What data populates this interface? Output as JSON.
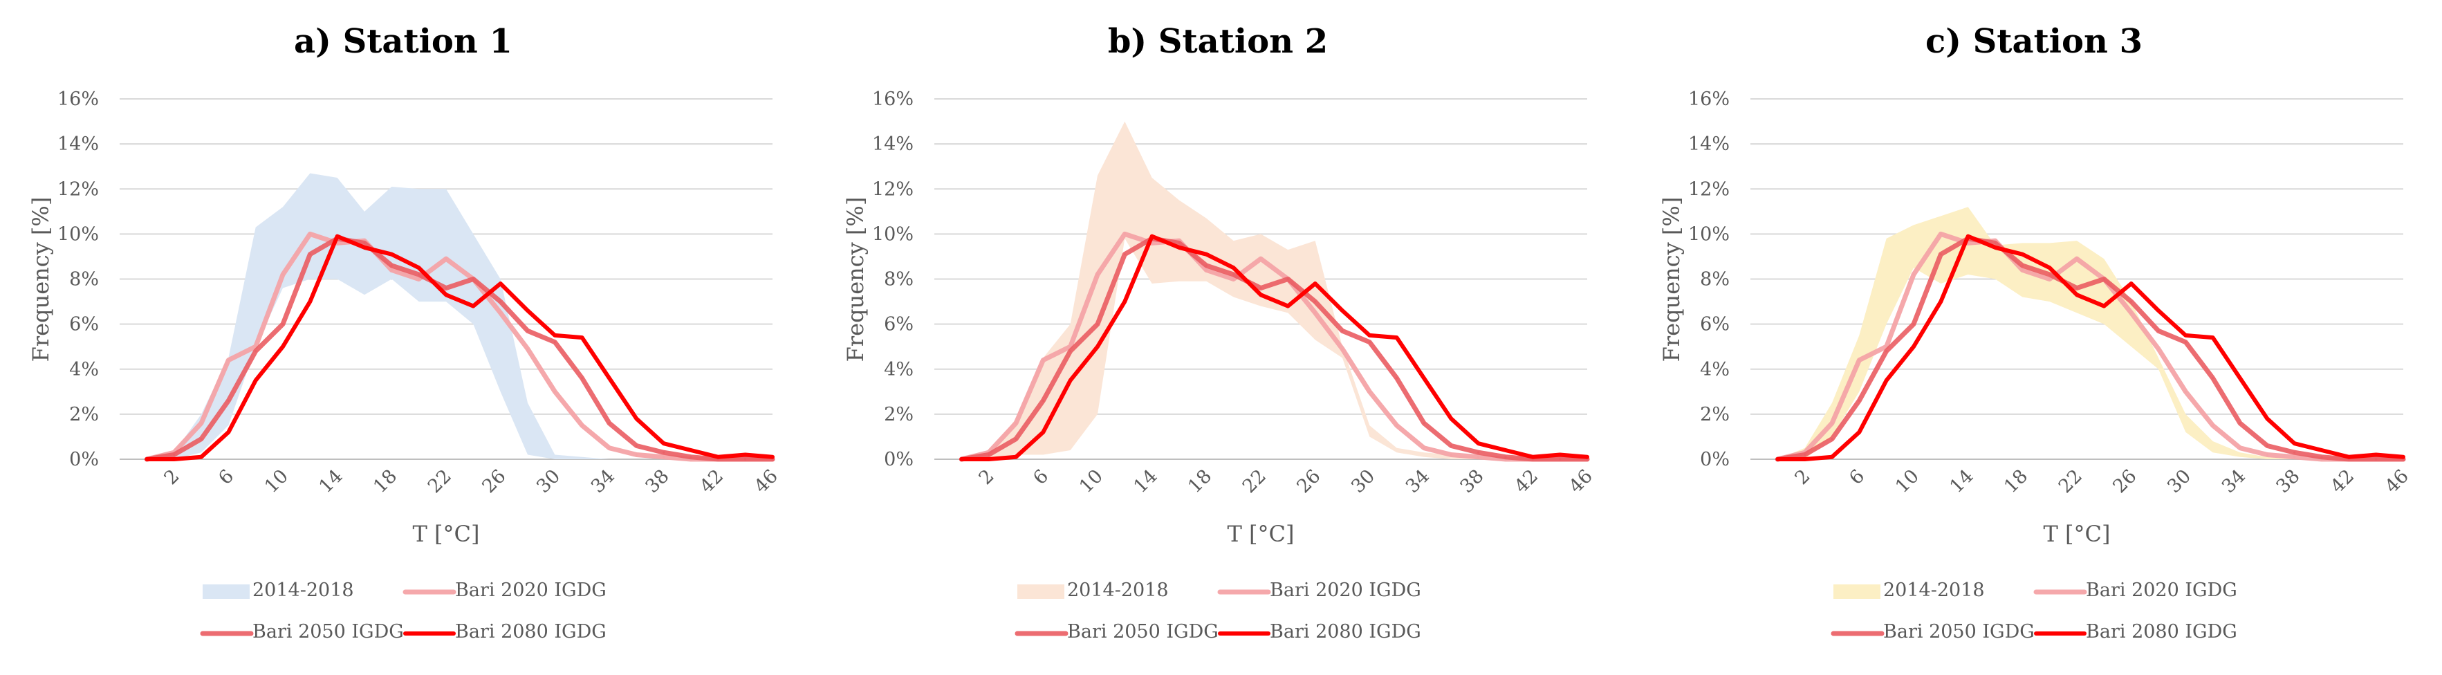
{
  "chart_data": [
    {
      "type": "line",
      "title": "a) Station 1",
      "xlabel": "T [°C]",
      "ylabel": "Frequency [%]",
      "x": [
        0,
        2,
        4,
        6,
        8,
        10,
        12,
        14,
        16,
        18,
        20,
        22,
        24,
        26,
        28,
        30,
        32,
        34,
        36,
        38,
        40,
        42,
        44,
        46
      ],
      "x_tick_labels": [
        "2",
        "6",
        "10",
        "14",
        "18",
        "22",
        "26",
        "30",
        "34",
        "38",
        "42",
        "46"
      ],
      "y_ticks": [
        "0%",
        "2%",
        "4%",
        "6%",
        "8%",
        "10%",
        "12%",
        "14%",
        "16%"
      ],
      "ylim": [
        0,
        16
      ],
      "grid": true,
      "legend_position": "bottom",
      "band": {
        "name": "2014-2018",
        "color": "#dae6f4",
        "upper": [
          0,
          0.3,
          2.0,
          4.5,
          10.3,
          11.2,
          12.7,
          12.5,
          11.0,
          12.1,
          12.0,
          12.0,
          10.0,
          8.0,
          2.5,
          0.2,
          0.1,
          0,
          0,
          0,
          0,
          0,
          0,
          0
        ],
        "lower": [
          0,
          0,
          0.3,
          1.5,
          5.0,
          7.6,
          8.0,
          8.0,
          7.3,
          8.0,
          7.0,
          7.0,
          6.0,
          3.0,
          0.2,
          0,
          0,
          0,
          0,
          0,
          0,
          0,
          0,
          0
        ]
      },
      "series": [
        {
          "name": "Bari 2020 IGDG",
          "color": "#f4a3a7",
          "values": [
            0,
            0.3,
            1.6,
            4.4,
            5.0,
            8.2,
            10.0,
            9.6,
            9.7,
            8.4,
            8.0,
            8.9,
            8.0,
            6.5,
            4.9,
            3.0,
            1.5,
            0.5,
            0.2,
            0.1,
            0,
            0,
            0,
            0
          ]
        },
        {
          "name": "Bari 2050  IGDG",
          "color": "#ea5c62",
          "values": [
            0,
            0.2,
            0.9,
            2.6,
            4.8,
            6.0,
            9.1,
            9.8,
            9.6,
            8.6,
            8.2,
            7.6,
            8.0,
            7.0,
            5.7,
            5.2,
            3.6,
            1.6,
            0.6,
            0.3,
            0.1,
            0,
            0,
            0
          ]
        },
        {
          "name": "Bari 2080 IGDG",
          "color": "#ff0000",
          "values": [
            0,
            0,
            0.1,
            1.2,
            3.5,
            5.0,
            7.0,
            9.9,
            9.4,
            9.1,
            8.5,
            7.3,
            6.8,
            7.8,
            6.6,
            5.5,
            5.4,
            3.6,
            1.8,
            0.7,
            0.4,
            0.1,
            0.2,
            0.1
          ]
        }
      ]
    },
    {
      "type": "line",
      "title": "b) Station 2",
      "xlabel": "T [°C]",
      "ylabel": "Frequency [%]",
      "x": [
        0,
        2,
        4,
        6,
        8,
        10,
        12,
        14,
        16,
        18,
        20,
        22,
        24,
        26,
        28,
        30,
        32,
        34,
        36,
        38,
        40,
        42,
        44,
        46
      ],
      "x_tick_labels": [
        "2",
        "6",
        "10",
        "14",
        "18",
        "22",
        "26",
        "30",
        "34",
        "38",
        "42",
        "46"
      ],
      "y_ticks": [
        "0%",
        "2%",
        "4%",
        "6%",
        "8%",
        "10%",
        "12%",
        "14%",
        "16%"
      ],
      "ylim": [
        0,
        16
      ],
      "grid": true,
      "legend_position": "bottom",
      "band": {
        "name": "2014-2018",
        "color": "#fbe5d6",
        "upper": [
          0,
          0.3,
          1.8,
          4.5,
          6.0,
          12.6,
          15.0,
          12.5,
          11.5,
          10.7,
          9.7,
          10.0,
          9.3,
          9.7,
          5.0,
          1.5,
          0.5,
          0.3,
          0.2,
          0.1,
          0,
          0,
          0,
          0
        ],
        "lower": [
          0,
          0,
          0.2,
          0.2,
          0.4,
          2.0,
          9.8,
          7.8,
          7.9,
          7.9,
          7.2,
          6.8,
          6.5,
          5.3,
          4.5,
          1.0,
          0.3,
          0.1,
          0,
          0,
          0,
          0,
          0,
          0
        ]
      },
      "series": [
        {
          "name": "Bari 2020 IGDG",
          "color": "#f4a3a7",
          "values": [
            0,
            0.3,
            1.6,
            4.4,
            5.0,
            8.2,
            10.0,
            9.6,
            9.7,
            8.4,
            8.0,
            8.9,
            8.0,
            6.5,
            4.9,
            3.0,
            1.5,
            0.5,
            0.2,
            0.1,
            0,
            0,
            0,
            0
          ]
        },
        {
          "name": "Bari 2050  IGDG",
          "color": "#ea5c62",
          "values": [
            0,
            0.2,
            0.9,
            2.6,
            4.8,
            6.0,
            9.1,
            9.8,
            9.6,
            8.6,
            8.2,
            7.6,
            8.0,
            7.0,
            5.7,
            5.2,
            3.6,
            1.6,
            0.6,
            0.3,
            0.1,
            0,
            0,
            0
          ]
        },
        {
          "name": "Bari 2080 IGDG",
          "color": "#ff0000",
          "values": [
            0,
            0,
            0.1,
            1.2,
            3.5,
            5.0,
            7.0,
            9.9,
            9.4,
            9.1,
            8.5,
            7.3,
            6.8,
            7.8,
            6.6,
            5.5,
            5.4,
            3.6,
            1.8,
            0.7,
            0.4,
            0.1,
            0.2,
            0.1
          ]
        }
      ]
    },
    {
      "type": "line",
      "title": "c) Station 3",
      "xlabel": "T [°C]",
      "ylabel": "Frequency [%]",
      "x": [
        0,
        2,
        4,
        6,
        8,
        10,
        12,
        14,
        16,
        18,
        20,
        22,
        24,
        26,
        28,
        30,
        32,
        34,
        36,
        38,
        40,
        42,
        44,
        46
      ],
      "x_tick_labels": [
        "2",
        "6",
        "10",
        "14",
        "18",
        "22",
        "26",
        "30",
        "34",
        "38",
        "42",
        "46"
      ],
      "y_ticks": [
        "0%",
        "2%",
        "4%",
        "6%",
        "8%",
        "10%",
        "12%",
        "14%",
        "16%"
      ],
      "ylim": [
        0,
        16
      ],
      "grid": true,
      "legend_position": "bottom",
      "band": {
        "name": "2014-2018",
        "color": "#fcefc4",
        "upper": [
          0,
          0.5,
          2.5,
          5.5,
          9.8,
          10.4,
          10.8,
          11.2,
          9.5,
          9.6,
          9.6,
          9.7,
          8.9,
          7.0,
          4.5,
          2.0,
          0.8,
          0.3,
          0.1,
          0,
          0,
          0,
          0,
          0
        ],
        "lower": [
          0,
          0,
          1.0,
          3.0,
          6.0,
          8.5,
          7.8,
          8.2,
          8.0,
          7.2,
          7.0,
          6.5,
          6.0,
          5.0,
          4.0,
          1.2,
          0.3,
          0.1,
          0,
          0,
          0,
          0,
          0,
          0
        ]
      },
      "series": [
        {
          "name": "Bari 2020 IGDG",
          "color": "#f4a3a7",
          "values": [
            0,
            0.3,
            1.6,
            4.4,
            5.0,
            8.2,
            10.0,
            9.6,
            9.7,
            8.4,
            8.0,
            8.9,
            8.0,
            6.5,
            4.9,
            3.0,
            1.5,
            0.5,
            0.2,
            0.1,
            0,
            0,
            0,
            0
          ]
        },
        {
          "name": "Bari 2050  IGDG",
          "color": "#ea5c62",
          "values": [
            0,
            0.2,
            0.9,
            2.6,
            4.8,
            6.0,
            9.1,
            9.8,
            9.6,
            8.6,
            8.2,
            7.6,
            8.0,
            7.0,
            5.7,
            5.2,
            3.6,
            1.6,
            0.6,
            0.3,
            0.1,
            0,
            0,
            0
          ]
        },
        {
          "name": "Bari 2080 IGDG",
          "color": "#ff0000",
          "values": [
            0,
            0,
            0.1,
            1.2,
            3.5,
            5.0,
            7.0,
            9.9,
            9.4,
            9.1,
            8.5,
            7.3,
            6.8,
            7.8,
            6.6,
            5.5,
            5.4,
            3.6,
            1.8,
            0.7,
            0.4,
            0.1,
            0.2,
            0.1
          ]
        }
      ]
    }
  ]
}
